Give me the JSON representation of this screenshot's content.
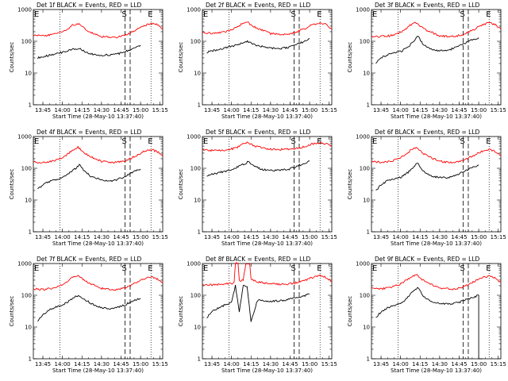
{
  "figure": {
    "xlabel": "Start Time (28-May-10 13:37:40)",
    "ylabel": "Counts/sec",
    "marker_s": "S",
    "marker_e": "E",
    "x_tick_labels": [
      "13:45",
      "14:00",
      "14:15",
      "14:30",
      "14:45",
      "15:00",
      "15:15"
    ],
    "y_tick_labels": [
      "1",
      "10",
      "100",
      "1000"
    ],
    "colors": {
      "events": "#000000",
      "lld": "#ff0000",
      "axes": "#000000"
    }
  },
  "chart_data": [
    {
      "type": "line",
      "title": "Det 1f BLACK = Events, RED = LLD",
      "xlim": [
        "13:37:40",
        "15:17:00"
      ],
      "ylim": [
        1,
        1000
      ],
      "yscale": "log",
      "vlines": {
        "dotted": [
          "13:58",
          "15:08"
        ],
        "dashed": [
          "14:48",
          "14:52"
        ]
      },
      "series": [
        {
          "name": "Events",
          "color": "#000000",
          "x": [
            "13:41",
            "13:45",
            "13:50",
            "13:55",
            "14:00",
            "14:05",
            "14:10",
            "14:13",
            "14:17",
            "14:22",
            "14:30",
            "14:38",
            "14:45",
            "14:50",
            "14:55",
            "15:00"
          ],
          "y": [
            30,
            33,
            36,
            40,
            45,
            52,
            58,
            58,
            48,
            40,
            36,
            38,
            42,
            50,
            62,
            75
          ]
        },
        {
          "name": "LLD",
          "color": "#ff0000",
          "x": [
            "13:38",
            "13:45",
            "13:52",
            "13:58",
            "14:03",
            "14:08",
            "14:12",
            "14:15",
            "14:20",
            "14:30",
            "14:40",
            "14:48",
            "14:55",
            "15:02",
            "15:08",
            "15:13",
            "15:17"
          ],
          "y": [
            155,
            150,
            160,
            190,
            230,
            320,
            360,
            290,
            210,
            140,
            130,
            150,
            210,
            300,
            370,
            330,
            240
          ]
        }
      ]
    },
    {
      "type": "line",
      "title": "Det 2f BLACK = Events, RED = LLD",
      "xlim": [
        "13:37:40",
        "15:17:00"
      ],
      "ylim": [
        1,
        1000
      ],
      "yscale": "log",
      "vlines": {
        "dotted": [
          "13:58",
          "15:08"
        ],
        "dashed": [
          "14:48",
          "14:52"
        ]
      },
      "series": [
        {
          "name": "Events",
          "color": "#000000",
          "x": [
            "13:41",
            "13:45",
            "13:50",
            "13:55",
            "14:00",
            "14:05",
            "14:10",
            "14:13",
            "14:17",
            "14:22",
            "14:30",
            "14:38",
            "14:45",
            "14:50",
            "14:55",
            "15:00"
          ],
          "y": [
            45,
            50,
            55,
            62,
            70,
            80,
            95,
            98,
            80,
            70,
            62,
            60,
            65,
            78,
            95,
            120
          ]
        },
        {
          "name": "LLD",
          "color": "#ff0000",
          "x": [
            "13:38",
            "13:45",
            "13:52",
            "13:58",
            "14:03",
            "14:08",
            "14:12",
            "14:15",
            "14:20",
            "14:30",
            "14:40",
            "14:48",
            "14:55",
            "15:02",
            "15:08",
            "15:13",
            "15:17"
          ],
          "y": [
            190,
            180,
            190,
            215,
            260,
            350,
            420,
            330,
            250,
            175,
            160,
            180,
            240,
            330,
            390,
            330,
            240
          ]
        }
      ]
    },
    {
      "type": "line",
      "title": "Det 3f BLACK = Events, RED = LLD",
      "xlim": [
        "13:37:40",
        "15:17:00"
      ],
      "ylim": [
        1,
        1000
      ],
      "yscale": "log",
      "vlines": {
        "dotted": [
          "13:58",
          "15:08"
        ],
        "dashed": [
          "14:48",
          "14:52"
        ]
      },
      "series": [
        {
          "name": "Events",
          "color": "#000000",
          "x": [
            "13:41",
            "13:45",
            "13:50",
            "13:55",
            "14:00",
            "14:05",
            "14:10",
            "14:13",
            "14:17",
            "14:22",
            "14:30",
            "14:38",
            "14:45",
            "14:50",
            "14:55",
            "15:00"
          ],
          "y": [
            20,
            30,
            38,
            42,
            48,
            60,
            100,
            150,
            85,
            60,
            50,
            55,
            70,
            90,
            110,
            130
          ]
        },
        {
          "name": "LLD",
          "color": "#ff0000",
          "x": [
            "13:38",
            "13:45",
            "13:52",
            "13:58",
            "14:03",
            "14:08",
            "14:12",
            "14:15",
            "14:20",
            "14:30",
            "14:40",
            "14:48",
            "14:55",
            "15:02",
            "15:08",
            "15:13",
            "15:17"
          ],
          "y": [
            145,
            140,
            150,
            180,
            230,
            330,
            390,
            300,
            220,
            150,
            140,
            160,
            220,
            320,
            380,
            330,
            240
          ]
        }
      ]
    },
    {
      "type": "line",
      "title": "Det 4f BLACK = Events, RED = LLD",
      "xlim": [
        "13:37:40",
        "15:17:00"
      ],
      "ylim": [
        1,
        1000
      ],
      "yscale": "log",
      "vlines": {
        "dotted": [
          "13:58",
          "15:08"
        ],
        "dashed": [
          "14:48",
          "14:52"
        ]
      },
      "series": [
        {
          "name": "Events",
          "color": "#000000",
          "x": [
            "13:41",
            "13:45",
            "13:50",
            "13:55",
            "14:00",
            "14:05",
            "14:10",
            "14:13",
            "14:17",
            "14:22",
            "14:30",
            "14:38",
            "14:45",
            "14:50",
            "14:55",
            "15:00"
          ],
          "y": [
            22,
            30,
            38,
            45,
            52,
            70,
            100,
            130,
            80,
            55,
            42,
            40,
            48,
            62,
            78,
            95
          ]
        },
        {
          "name": "LLD",
          "color": "#ff0000",
          "x": [
            "13:38",
            "13:45",
            "13:52",
            "13:58",
            "14:03",
            "14:08",
            "14:12",
            "14:15",
            "14:20",
            "14:30",
            "14:40",
            "14:48",
            "14:55",
            "15:02",
            "15:08",
            "15:13",
            "15:17"
          ],
          "y": [
            160,
            150,
            165,
            200,
            260,
            380,
            460,
            360,
            250,
            165,
            150,
            170,
            230,
            330,
            390,
            330,
            240
          ]
        }
      ]
    },
    {
      "type": "line",
      "title": "Det 5f BLACK = Events, RED = LLD",
      "xlim": [
        "13:37:40",
        "15:17:00"
      ],
      "ylim": [
        1,
        1000
      ],
      "yscale": "log",
      "vlines": {
        "dotted": [
          "13:58",
          "15:08"
        ],
        "dashed": [
          "14:48",
          "14:52"
        ]
      },
      "series": [
        {
          "name": "Events",
          "color": "#000000",
          "x": [
            "13:41",
            "13:45",
            "13:50",
            "13:55",
            "14:00",
            "14:05",
            "14:10",
            "14:13",
            "14:17",
            "14:22",
            "14:30",
            "14:38",
            "14:45",
            "14:50",
            "14:55",
            "15:00"
          ],
          "y": [
            55,
            65,
            72,
            80,
            90,
            110,
            140,
            160,
            120,
            95,
            85,
            85,
            95,
            115,
            140,
            170
          ]
        },
        {
          "name": "LLD",
          "color": "#ff0000",
          "x": [
            "13:38",
            "13:45",
            "13:52",
            "13:58",
            "14:03",
            "14:08",
            "14:12",
            "14:15",
            "14:20",
            "14:30",
            "14:40",
            "14:48",
            "14:55",
            "15:02",
            "15:08",
            "15:13",
            "15:17"
          ],
          "y": [
            370,
            365,
            370,
            390,
            430,
            560,
            650,
            560,
            470,
            400,
            390,
            410,
            470,
            580,
            640,
            580,
            480
          ]
        }
      ]
    },
    {
      "type": "line",
      "title": "Det 6f BLACK = Events, RED = LLD",
      "xlim": [
        "13:37:40",
        "15:17:00"
      ],
      "ylim": [
        1,
        1000
      ],
      "yscale": "log",
      "vlines": {
        "dotted": [
          "13:58",
          "15:08"
        ],
        "dashed": [
          "14:48",
          "14:52"
        ]
      },
      "series": [
        {
          "name": "Events",
          "color": "#000000",
          "x": [
            "13:41",
            "13:45",
            "13:50",
            "13:55",
            "14:00",
            "14:05",
            "14:10",
            "14:13",
            "14:17",
            "14:22",
            "14:30",
            "14:38",
            "14:45",
            "14:50",
            "14:55",
            "15:00"
          ],
          "y": [
            20,
            30,
            40,
            45,
            52,
            70,
            110,
            150,
            85,
            60,
            50,
            52,
            65,
            85,
            105,
            125
          ]
        },
        {
          "name": "LLD",
          "color": "#ff0000",
          "x": [
            "13:38",
            "13:45",
            "13:52",
            "13:58",
            "14:03",
            "14:08",
            "14:12",
            "14:15",
            "14:20",
            "14:30",
            "14:40",
            "14:48",
            "14:55",
            "15:02",
            "15:08",
            "15:13",
            "15:17"
          ],
          "y": [
            160,
            155,
            165,
            200,
            260,
            370,
            450,
            350,
            250,
            165,
            150,
            175,
            240,
            340,
            400,
            340,
            250
          ]
        }
      ]
    },
    {
      "type": "line",
      "title": "Det 7f BLACK = Events, RED = LLD",
      "xlim": [
        "13:37:40",
        "15:17:00"
      ],
      "ylim": [
        1,
        1000
      ],
      "yscale": "log",
      "vlines": {
        "dotted": [
          "13:58",
          "15:08"
        ],
        "dashed": [
          "14:48",
          "14:52"
        ]
      },
      "series": [
        {
          "name": "Events",
          "color": "#000000",
          "x": [
            "13:41",
            "13:45",
            "13:50",
            "13:55",
            "14:00",
            "14:05",
            "14:10",
            "14:13",
            "14:17",
            "14:22",
            "14:30",
            "14:38",
            "14:45",
            "14:50",
            "14:55",
            "15:00"
          ],
          "y": [
            15,
            25,
            35,
            42,
            50,
            65,
            90,
            100,
            75,
            55,
            40,
            38,
            45,
            55,
            68,
            80
          ]
        },
        {
          "name": "LLD",
          "color": "#ff0000",
          "x": [
            "13:38",
            "13:45",
            "13:52",
            "13:58",
            "14:03",
            "14:08",
            "14:12",
            "14:15",
            "14:20",
            "14:30",
            "14:40",
            "14:48",
            "14:55",
            "15:02",
            "15:08",
            "15:13",
            "15:17"
          ],
          "y": [
            160,
            150,
            165,
            200,
            260,
            370,
            430,
            340,
            250,
            165,
            150,
            170,
            230,
            330,
            390,
            330,
            240
          ]
        }
      ]
    },
    {
      "type": "line",
      "title": "Det 8f BLACK = Events, RED = LLD",
      "xlim": [
        "13:37:40",
        "15:17:00"
      ],
      "ylim": [
        1,
        1000
      ],
      "yscale": "log",
      "vlines": {
        "dotted": [
          "13:58",
          "15:08"
        ],
        "dashed": [
          "14:48",
          "14:52"
        ]
      },
      "series": [
        {
          "name": "Events",
          "color": "#000000",
          "x": [
            "13:41",
            "13:45",
            "13:50",
            "13:55",
            "14:00",
            "14:03",
            "14:06",
            "14:09",
            "14:12",
            "14:15",
            "14:20",
            "14:30",
            "14:38",
            "14:45",
            "14:50",
            "14:55",
            "15:00"
          ],
          "y": [
            20,
            30,
            40,
            50,
            60,
            200,
            30,
            200,
            180,
            15,
            70,
            65,
            68,
            75,
            85,
            95,
            110
          ]
        },
        {
          "name": "LLD",
          "color": "#ff0000",
          "x": [
            "13:38",
            "13:45",
            "13:52",
            "13:58",
            "14:02",
            "14:03",
            "14:05",
            "14:06",
            "14:09",
            "14:11",
            "14:12",
            "14:14",
            "14:15",
            "14:20",
            "14:30",
            "14:40",
            "14:48",
            "14:55",
            "15:02",
            "15:08",
            "15:13",
            "15:17"
          ],
          "y": [
            215,
            210,
            220,
            235,
            240,
            1000,
            1000,
            280,
            300,
            1000,
            1000,
            1000,
            320,
            260,
            230,
            220,
            240,
            290,
            360,
            420,
            360,
            270
          ]
        }
      ]
    },
    {
      "type": "line",
      "title": "Det 9f BLACK = Events, RED = LLD",
      "xlim": [
        "13:37:40",
        "15:17:00"
      ],
      "ylim": [
        1,
        1000
      ],
      "yscale": "log",
      "vlines": {
        "dotted": [
          "13:58",
          "15:08"
        ],
        "dashed": [
          "14:48",
          "14:52"
        ]
      },
      "series": [
        {
          "name": "Events",
          "color": "#000000",
          "x": [
            "13:41",
            "13:45",
            "13:50",
            "13:55",
            "14:00",
            "14:05",
            "14:10",
            "14:13",
            "14:17",
            "14:22",
            "14:30",
            "14:38",
            "14:45",
            "14:50",
            "14:55",
            "15:00",
            "15:00",
            "15:03",
            "15:03"
          ],
          "y": [
            20,
            30,
            40,
            48,
            55,
            80,
            140,
            175,
            100,
            70,
            55,
            52,
            60,
            72,
            85,
            100,
            1,
            1,
            1
          ]
        },
        {
          "name": "LLD",
          "color": "#ff0000",
          "x": [
            "13:38",
            "13:45",
            "13:52",
            "13:58",
            "14:03",
            "14:08",
            "14:12",
            "14:15",
            "14:20",
            "14:30",
            "14:40",
            "14:48",
            "14:55",
            "15:02",
            "15:08",
            "15:13",
            "15:17"
          ],
          "y": [
            170,
            160,
            175,
            210,
            270,
            380,
            450,
            350,
            255,
            170,
            155,
            180,
            250,
            350,
            410,
            340,
            250
          ]
        }
      ]
    }
  ]
}
